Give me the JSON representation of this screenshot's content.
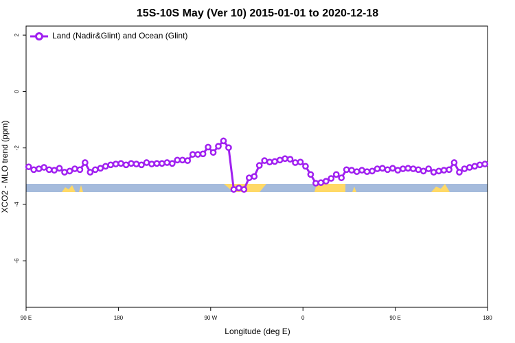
{
  "chart_data": {
    "type": "line",
    "title": "15S-10S May (Ver 10)   2015-01-01 to 2020-12-18",
    "xlabel": "Longitude (deg E)",
    "ylabel": "XCO2 - MLO trend (ppm)",
    "x": [
      92.5,
      97.5,
      102.5,
      107.5,
      112.5,
      117.5,
      122.5,
      127.5,
      132.5,
      137.5,
      142.5,
      147.5,
      152.5,
      157.5,
      162.5,
      167.5,
      172.5,
      177.5,
      182.5,
      187.5,
      192.5,
      197.5,
      202.5,
      207.5,
      212.5,
      217.5,
      222.5,
      227.5,
      232.5,
      237.5,
      242.5,
      247.5,
      252.5,
      257.5,
      262.5,
      267.5,
      272.5,
      277.5,
      282.5,
      287.5,
      292.5,
      297.5,
      302.5,
      307.5,
      312.5,
      317.5,
      322.5,
      327.5,
      332.5,
      337.5,
      342.5,
      347.5,
      352.5,
      357.5,
      362.5,
      367.5,
      372.5,
      377.5,
      382.5,
      387.5,
      392.5,
      397.5,
      402.5,
      407.5,
      412.5,
      417.5,
      422.5,
      427.5,
      432.5,
      437.5,
      442.5,
      447.5,
      452.5,
      457.5,
      462.5,
      467.5,
      472.5,
      477.5,
      482.5,
      487.5,
      492.5,
      497.5,
      502.5,
      507.5,
      512.5,
      517.5,
      522.5,
      527.5,
      532.5,
      537.5
    ],
    "series": [
      {
        "name": "Land (Nadir&Glint) and Ocean (Glint)",
        "color": "#a020f0",
        "values": [
          -2.67,
          -2.77,
          -2.74,
          -2.69,
          -2.77,
          -2.79,
          -2.72,
          -2.86,
          -2.82,
          -2.74,
          -2.77,
          -2.52,
          -2.86,
          -2.77,
          -2.72,
          -2.65,
          -2.6,
          -2.57,
          -2.55,
          -2.6,
          -2.55,
          -2.57,
          -2.6,
          -2.52,
          -2.57,
          -2.55,
          -2.55,
          -2.52,
          -2.55,
          -2.43,
          -2.43,
          -2.45,
          -2.23,
          -2.23,
          -2.21,
          -1.97,
          -2.16,
          -1.94,
          -1.75,
          -1.99,
          -3.47,
          -3.42,
          -3.47,
          -3.06,
          -3.01,
          -2.62,
          -2.45,
          -2.5,
          -2.48,
          -2.43,
          -2.38,
          -2.4,
          -2.52,
          -2.5,
          -2.65,
          -2.94,
          -3.25,
          -3.23,
          -3.18,
          -3.08,
          -2.94,
          -3.06,
          -2.77,
          -2.79,
          -2.84,
          -2.79,
          -2.84,
          -2.82,
          -2.74,
          -2.72,
          -2.77,
          -2.72,
          -2.79,
          -2.74,
          -2.72,
          -2.74,
          -2.77,
          -2.82,
          -2.74,
          -2.86,
          -2.82,
          -2.79,
          -2.77,
          -2.52,
          -2.86,
          -2.74,
          -2.69,
          -2.65,
          -2.6,
          -2.57
        ]
      }
    ],
    "xlim": [
      90,
      540
    ],
    "ylim": [
      -7.65,
      2.32
    ],
    "xticks": [
      {
        "value": 90,
        "label": "90 E"
      },
      180,
      {
        "value": 270,
        "label": "90 W"
      },
      {
        "value": 360,
        "label": "0"
      },
      {
        "value": 450,
        "label": "90 E"
      },
      {
        "value": 540,
        "label": "180"
      }
    ],
    "yticks": [
      2,
      0,
      -2,
      -4,
      -6
    ],
    "legend": "top-left"
  }
}
